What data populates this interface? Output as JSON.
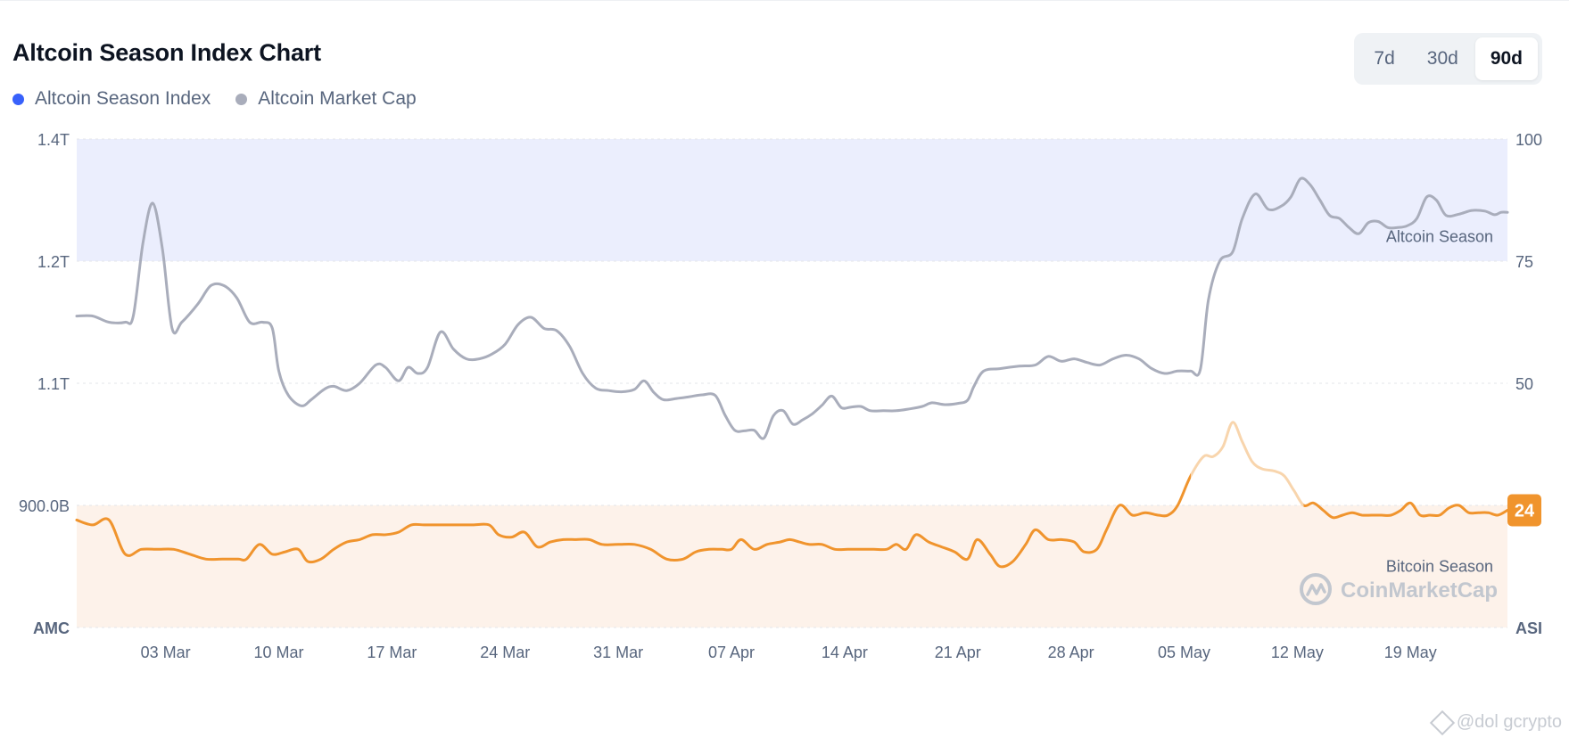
{
  "header": {
    "title": "Altcoin Season Index Chart"
  },
  "range_selector": {
    "options": [
      "7d",
      "30d",
      "90d"
    ],
    "active": "90d"
  },
  "watermark": {
    "handle": "@dol  gcrypto"
  },
  "colors": {
    "index_line": "#f0942d",
    "index_line_faded": "#f8d5ad",
    "market_cap_line": "#a9adbb",
    "legend_index_dot": "#3861fb",
    "altcoin_zone": "#ebeefd",
    "bitcoin_zone": "#fdf2ea",
    "badge": "#f0942d"
  },
  "chart_data": {
    "type": "line",
    "legend": [
      "Altcoin Season Index",
      "Altcoin Market Cap"
    ],
    "left_axis": {
      "name": "AMC",
      "ticks": [
        "1.4T",
        "1.2T",
        "1.1T",
        "900.0B"
      ],
      "tick_values": [
        1.4,
        1.2,
        1.1,
        0.9
      ],
      "unit": "trillion USD"
    },
    "right_axis": {
      "name": "ASI",
      "ticks": [
        "100",
        "75",
        "50"
      ],
      "tick_values": [
        100,
        75,
        50
      ],
      "ylim": [
        0,
        100
      ]
    },
    "x_axis": {
      "ticks": [
        "03 Mar",
        "10 Mar",
        "17 Mar",
        "24 Mar",
        "31 Mar",
        "07 Apr",
        "14 Apr",
        "21 Apr",
        "28 Apr",
        "05 May",
        "12 May",
        "19 May"
      ],
      "tick_day_index": [
        4,
        11,
        18,
        25,
        32,
        39,
        46,
        53,
        60,
        67,
        74,
        81
      ],
      "day_range": [
        -1.5,
        87
      ]
    },
    "zones": [
      {
        "label": "Altcoin Season",
        "from": 75,
        "to": 100
      },
      {
        "label": "Bitcoin Season",
        "from": 0,
        "to": 25
      }
    ],
    "current_value": "24",
    "series": [
      {
        "name": "Altcoin Market Cap",
        "axis": "left",
        "points": [
          [
            -1.5,
            1.155
          ],
          [
            -0.5,
            1.155
          ],
          [
            0.5,
            1.15
          ],
          [
            1.5,
            1.15
          ],
          [
            2.0,
            1.155
          ],
          [
            2.6,
            1.23
          ],
          [
            3.2,
            1.295
          ],
          [
            3.8,
            1.22
          ],
          [
            4.4,
            1.145
          ],
          [
            5.0,
            1.15
          ],
          [
            6.0,
            1.165
          ],
          [
            6.8,
            1.18
          ],
          [
            7.6,
            1.18
          ],
          [
            8.4,
            1.17
          ],
          [
            9.2,
            1.15
          ],
          [
            10.0,
            1.15
          ],
          [
            10.6,
            1.145
          ],
          [
            11.0,
            1.11
          ],
          [
            11.6,
            1.08
          ],
          [
            12.4,
            1.063
          ],
          [
            13.0,
            1.073
          ],
          [
            13.8,
            1.09
          ],
          [
            14.4,
            1.095
          ],
          [
            15.2,
            1.088
          ],
          [
            16.0,
            1.1
          ],
          [
            17.0,
            1.115
          ],
          [
            17.6,
            1.113
          ],
          [
            18.4,
            1.102
          ],
          [
            19.0,
            1.113
          ],
          [
            19.6,
            1.108
          ],
          [
            20.2,
            1.113
          ],
          [
            21.0,
            1.142
          ],
          [
            21.8,
            1.128
          ],
          [
            22.6,
            1.12
          ],
          [
            23.4,
            1.12
          ],
          [
            24.2,
            1.124
          ],
          [
            25.0,
            1.132
          ],
          [
            25.8,
            1.148
          ],
          [
            26.6,
            1.154
          ],
          [
            27.4,
            1.145
          ],
          [
            28.2,
            1.143
          ],
          [
            29.0,
            1.13
          ],
          [
            29.8,
            1.108
          ],
          [
            30.6,
            1.092
          ],
          [
            31.4,
            1.088
          ],
          [
            32.2,
            1.086
          ],
          [
            33.0,
            1.09
          ],
          [
            33.6,
            1.102
          ],
          [
            34.2,
            1.085
          ],
          [
            34.8,
            1.073
          ],
          [
            35.6,
            1.075
          ],
          [
            36.4,
            1.078
          ],
          [
            37.2,
            1.081
          ],
          [
            38.0,
            1.08
          ],
          [
            38.6,
            1.048
          ],
          [
            39.2,
            1.023
          ],
          [
            39.8,
            1.022
          ],
          [
            40.4,
            1.023
          ],
          [
            41.0,
            1.01
          ],
          [
            41.6,
            1.047
          ],
          [
            42.2,
            1.055
          ],
          [
            42.8,
            1.033
          ],
          [
            43.4,
            1.04
          ],
          [
            44.0,
            1.05
          ],
          [
            44.6,
            1.064
          ],
          [
            45.2,
            1.079
          ],
          [
            45.8,
            1.06
          ],
          [
            46.4,
            1.061
          ],
          [
            47.0,
            1.062
          ],
          [
            47.6,
            1.055
          ],
          [
            48.4,
            1.055
          ],
          [
            49.2,
            1.055
          ],
          [
            50.0,
            1.058
          ],
          [
            50.8,
            1.062
          ],
          [
            51.4,
            1.068
          ],
          [
            52.2,
            1.065
          ],
          [
            53.0,
            1.067
          ],
          [
            53.6,
            1.072
          ],
          [
            54.0,
            1.095
          ],
          [
            54.6,
            1.11
          ],
          [
            55.6,
            1.112
          ],
          [
            56.8,
            1.114
          ],
          [
            57.8,
            1.115
          ],
          [
            58.6,
            1.122
          ],
          [
            59.4,
            1.118
          ],
          [
            60.2,
            1.12
          ],
          [
            61.0,
            1.117
          ],
          [
            61.8,
            1.115
          ],
          [
            62.6,
            1.12
          ],
          [
            63.4,
            1.123
          ],
          [
            64.2,
            1.12
          ],
          [
            65.0,
            1.112
          ],
          [
            65.8,
            1.108
          ],
          [
            66.6,
            1.11
          ],
          [
            67.4,
            1.11
          ],
          [
            68.0,
            1.111
          ],
          [
            68.5,
            1.168
          ],
          [
            69.2,
            1.2
          ],
          [
            70.0,
            1.215
          ],
          [
            70.6,
            1.27
          ],
          [
            71.4,
            1.31
          ],
          [
            72.2,
            1.285
          ],
          [
            73.0,
            1.29
          ],
          [
            73.6,
            1.305
          ],
          [
            74.2,
            1.335
          ],
          [
            74.8,
            1.325
          ],
          [
            75.4,
            1.3
          ],
          [
            76.0,
            1.275
          ],
          [
            76.6,
            1.27
          ],
          [
            77.2,
            1.255
          ],
          [
            77.8,
            1.245
          ],
          [
            78.4,
            1.263
          ],
          [
            79.0,
            1.265
          ],
          [
            79.6,
            1.255
          ],
          [
            80.2,
            1.255
          ],
          [
            80.8,
            1.258
          ],
          [
            81.4,
            1.27
          ],
          [
            82.0,
            1.305
          ],
          [
            82.6,
            1.3
          ],
          [
            83.2,
            1.275
          ],
          [
            84.0,
            1.277
          ],
          [
            84.8,
            1.283
          ],
          [
            85.6,
            1.282
          ],
          [
            86.2,
            1.276
          ],
          [
            86.6,
            1.28
          ],
          [
            87.0,
            1.28
          ]
        ]
      },
      {
        "name": "Altcoin Season Index",
        "axis": "right",
        "points": [
          [
            -1.5,
            22
          ],
          [
            -0.5,
            21
          ],
          [
            0.5,
            22
          ],
          [
            1.5,
            15
          ],
          [
            2.5,
            16
          ],
          [
            3.5,
            16
          ],
          [
            4.5,
            16
          ],
          [
            5.5,
            15
          ],
          [
            6.5,
            14
          ],
          [
            7.5,
            14
          ],
          [
            8.5,
            14
          ],
          [
            9.0,
            14
          ],
          [
            9.8,
            17
          ],
          [
            10.6,
            15
          ],
          [
            11.4,
            15.5
          ],
          [
            12.2,
            16
          ],
          [
            12.8,
            13.5
          ],
          [
            13.6,
            14
          ],
          [
            14.4,
            16
          ],
          [
            15.2,
            17.5
          ],
          [
            16.0,
            18
          ],
          [
            16.8,
            19
          ],
          [
            17.6,
            19
          ],
          [
            18.4,
            19.5
          ],
          [
            19.2,
            21
          ],
          [
            20.0,
            21
          ],
          [
            21.0,
            21
          ],
          [
            22.0,
            21
          ],
          [
            23.0,
            21
          ],
          [
            24.0,
            21
          ],
          [
            24.6,
            19
          ],
          [
            25.4,
            18.5
          ],
          [
            26.2,
            19.5
          ],
          [
            27.0,
            16.5
          ],
          [
            27.8,
            17.5
          ],
          [
            28.6,
            18
          ],
          [
            29.4,
            18
          ],
          [
            30.2,
            18
          ],
          [
            31.0,
            17
          ],
          [
            32.0,
            17
          ],
          [
            33.0,
            17
          ],
          [
            34.0,
            16
          ],
          [
            35.0,
            14
          ],
          [
            36.0,
            14
          ],
          [
            36.8,
            15.5
          ],
          [
            37.6,
            16
          ],
          [
            38.4,
            16
          ],
          [
            39.0,
            16
          ],
          [
            39.6,
            18
          ],
          [
            40.4,
            16
          ],
          [
            41.2,
            17
          ],
          [
            42.0,
            17.5
          ],
          [
            42.6,
            18
          ],
          [
            43.2,
            17.5
          ],
          [
            43.8,
            17
          ],
          [
            44.6,
            17
          ],
          [
            45.4,
            16
          ],
          [
            46.2,
            16
          ],
          [
            47.0,
            16
          ],
          [
            47.8,
            16
          ],
          [
            48.6,
            16
          ],
          [
            49.2,
            17
          ],
          [
            49.8,
            16
          ],
          [
            50.4,
            19
          ],
          [
            51.2,
            17.5
          ],
          [
            52.0,
            16.5
          ],
          [
            52.8,
            15.5
          ],
          [
            53.6,
            14
          ],
          [
            54.2,
            18
          ],
          [
            55.0,
            15
          ],
          [
            55.6,
            12.5
          ],
          [
            56.4,
            13.5
          ],
          [
            57.2,
            17
          ],
          [
            57.8,
            20
          ],
          [
            58.6,
            18
          ],
          [
            59.4,
            18
          ],
          [
            60.2,
            17.5
          ],
          [
            60.8,
            15.5
          ],
          [
            61.6,
            16
          ],
          [
            62.2,
            20
          ],
          [
            63.0,
            25
          ],
          [
            63.8,
            23
          ],
          [
            64.6,
            23.5
          ],
          [
            65.4,
            23
          ],
          [
            66.0,
            23
          ],
          [
            66.6,
            25
          ],
          [
            67.4,
            31
          ],
          [
            68.2,
            35
          ],
          [
            68.8,
            35
          ],
          [
            69.4,
            37
          ],
          [
            70.0,
            42
          ],
          [
            70.6,
            38
          ],
          [
            71.2,
            34
          ],
          [
            71.8,
            32.5
          ],
          [
            72.6,
            32
          ],
          [
            73.2,
            31
          ],
          [
            73.8,
            28
          ],
          [
            74.4,
            25
          ],
          [
            75.0,
            25.5
          ],
          [
            75.6,
            24
          ],
          [
            76.2,
            22.5
          ],
          [
            76.8,
            23
          ],
          [
            77.4,
            23.5
          ],
          [
            78.0,
            23
          ],
          [
            78.6,
            23
          ],
          [
            79.2,
            23
          ],
          [
            79.8,
            23
          ],
          [
            80.4,
            24
          ],
          [
            81.0,
            25.5
          ],
          [
            81.6,
            23
          ],
          [
            82.2,
            23
          ],
          [
            82.8,
            23
          ],
          [
            83.4,
            24.5
          ],
          [
            84.0,
            25
          ],
          [
            84.6,
            23.5
          ],
          [
            85.2,
            23.5
          ],
          [
            85.8,
            23.5
          ],
          [
            86.4,
            23
          ],
          [
            87.0,
            24
          ]
        ]
      }
    ]
  }
}
